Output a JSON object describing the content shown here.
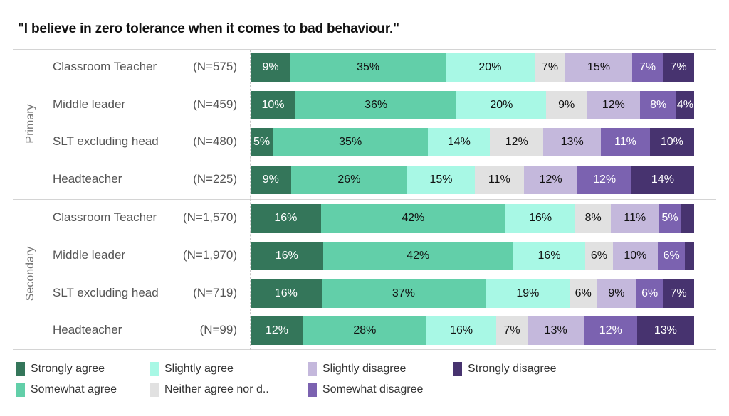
{
  "chart_data": {
    "type": "bar",
    "orientation": "horizontal",
    "stacked": "100%",
    "title": "\"I believe in zero tolerance when it comes to bad behaviour.\"",
    "xlabel": "",
    "ylabel": "",
    "xlim": [
      0,
      100
    ],
    "grid": false,
    "legend_position": "bottom",
    "series": [
      {
        "name": "Strongly agree",
        "color": "#34765a",
        "text_color": "#ffffff"
      },
      {
        "name": "Somewhat agree",
        "color": "#62cfa9",
        "text_color": "#111111"
      },
      {
        "name": "Slightly agree",
        "color": "#a8f8e5",
        "text_color": "#111111"
      },
      {
        "name": "Neither agree nor d..",
        "color": "#e1e1e1",
        "text_color": "#111111"
      },
      {
        "name": "Slightly disagree",
        "color": "#c4b8dc",
        "text_color": "#111111"
      },
      {
        "name": "Somewhat disagree",
        "color": "#7b62b0",
        "text_color": "#ffffff"
      },
      {
        "name": "Strongly disagree",
        "color": "#47336f",
        "text_color": "#ffffff"
      }
    ],
    "groups": [
      {
        "name": "Primary",
        "rows": [
          {
            "label": "Classroom Teacher",
            "n": "(N=575)",
            "values": [
              9,
              35,
              20,
              7,
              15,
              7,
              7
            ],
            "labels": [
              "9%",
              "35%",
              "20%",
              "7%",
              "15%",
              "7%",
              "7%"
            ]
          },
          {
            "label": "Middle leader",
            "n": "(N=459)",
            "values": [
              10,
              36,
              20,
              9,
              12,
              8,
              4
            ],
            "labels": [
              "10%",
              "36%",
              "20%",
              "9%",
              "12%",
              "8%",
              "4%"
            ]
          },
          {
            "label": "SLT excluding head",
            "n": "(N=480)",
            "values": [
              5,
              35,
              14,
              12,
              13,
              11,
              10
            ],
            "labels": [
              "5%",
              "35%",
              "14%",
              "12%",
              "13%",
              "11%",
              "10%"
            ]
          },
          {
            "label": "Headteacher",
            "n": "(N=225)",
            "values": [
              9,
              26,
              15,
              11,
              12,
              12,
              14
            ],
            "labels": [
              "9%",
              "26%",
              "15%",
              "11%",
              "12%",
              "12%",
              "14%"
            ]
          }
        ]
      },
      {
        "name": "Secondary",
        "rows": [
          {
            "label": "Classroom Teacher",
            "n": "(N=1,570)",
            "values": [
              16,
              42,
              16,
              8,
              11,
              5,
              3
            ],
            "labels": [
              "16%",
              "42%",
              "16%",
              "8%",
              "11%",
              "5%",
              ""
            ]
          },
          {
            "label": "Middle leader",
            "n": "(N=1,970)",
            "values": [
              16,
              42,
              16,
              6,
              10,
              6,
              2
            ],
            "labels": [
              "16%",
              "42%",
              "16%",
              "6%",
              "10%",
              "6%",
              ""
            ]
          },
          {
            "label": "SLT excluding head",
            "n": "(N=719)",
            "values": [
              16,
              37,
              19,
              6,
              9,
              6,
              7
            ],
            "labels": [
              "16%",
              "37%",
              "19%",
              "6%",
              "9%",
              "6%",
              "7%"
            ]
          },
          {
            "label": "Headteacher",
            "n": "(N=99)",
            "values": [
              12,
              28,
              16,
              7,
              13,
              12,
              13
            ],
            "labels": [
              "12%",
              "28%",
              "16%",
              "7%",
              "13%",
              "12%",
              "13%"
            ]
          }
        ]
      }
    ]
  }
}
